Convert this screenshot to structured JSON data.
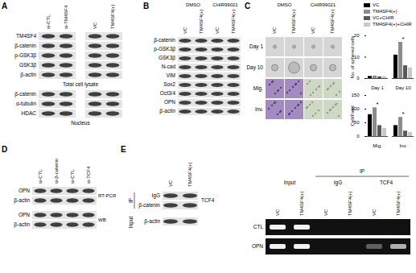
{
  "panels": {
    "A": {
      "label": "A",
      "columns": [
        "si-CTL",
        "si-TM4SF4",
        "VC",
        "TM4SF4(+)"
      ],
      "total_rows": [
        "TM4SF4",
        "β-catenin",
        "p-GSK3β",
        "GSK3β",
        "β-actin"
      ],
      "total_caption": "Total cell lysate",
      "nucleus_rows": [
        "β-catenin",
        "α-tubulin",
        "HDAC"
      ],
      "nucleus_caption": "Nucleus"
    },
    "B": {
      "label": "B",
      "groups": [
        "DMSO",
        "CHIR99021"
      ],
      "columns": [
        "VC",
        "TM4SF4(+)",
        "VC",
        "TM4SF4(+)"
      ],
      "rows": [
        "β-catenin",
        "p-GSK3β",
        "GSK3β",
        "N-cad",
        "VIM",
        "Sox2",
        "Oct3/4",
        "OPN",
        "β-actin"
      ]
    },
    "C": {
      "label": "C",
      "groups": [
        "DMSO",
        "CHIR99021"
      ],
      "columns": [
        "VC",
        "TM4SF4(+)",
        "VC",
        "TM4SF4(+)"
      ],
      "rows": [
        "Day 1",
        "Day 10",
        "Mig.",
        "Inv."
      ]
    },
    "D": {
      "label": "D",
      "columns": [
        "si-CTL",
        "si-β-catenin",
        "si-CTL",
        "si-TCF4"
      ],
      "blocks": [
        {
          "rows": [
            "OPN",
            "β-actin"
          ],
          "method": "RT-PCR"
        },
        {
          "rows": [
            "OPN",
            "β-actin"
          ],
          "method": "WB"
        }
      ]
    },
    "E": {
      "label": "E",
      "left": {
        "columns": [
          "VC",
          "TM4SF4(+)"
        ],
        "ip_label": "IP",
        "ip_rows": [
          "IgG",
          "β-catenin"
        ],
        "ip_antibody": "TCF4",
        "input_label": "Input",
        "input_rows": [
          "β-actin"
        ]
      },
      "right": {
        "ip_label": "IP",
        "groups": [
          "Input",
          "IgG",
          "TCF4"
        ],
        "columns": [
          "VC",
          "TM4SF4(+)"
        ],
        "rows": [
          "CTL",
          "OPN"
        ]
      }
    }
  },
  "chart_data": [
    {
      "type": "bar",
      "ylabel": "No. of sphered cells",
      "categories": [
        "Day 1",
        "Day 10"
      ],
      "series": [
        {
          "name": "VC",
          "color": "#000000",
          "values": [
            1,
            11
          ]
        },
        {
          "name": "TM4SF4(+)",
          "color": "#8c8c8c",
          "values": [
            1.2,
            17
          ]
        },
        {
          "name": "VC+CHIR",
          "color": "#5a5a5a",
          "values": [
            0.8,
            6
          ]
        },
        {
          "name": "TM4SF4(+)+CHIR",
          "color": "#c8c8c8",
          "values": [
            0.9,
            5
          ]
        }
      ],
      "ylim": [
        0,
        20
      ],
      "yticks": [
        0,
        10,
        20
      ],
      "legend": "top",
      "annotations": [
        {
          "category": "Day 10",
          "text": "*"
        }
      ]
    },
    {
      "type": "bar",
      "ylabel": "Cell/Field",
      "categories": [
        "Mig.",
        "Inv."
      ],
      "series": [
        {
          "name": "VC",
          "color": "#000000",
          "values": [
            80,
            40
          ]
        },
        {
          "name": "TM4SF4(+)",
          "color": "#8c8c8c",
          "values": [
            105,
            70
          ]
        },
        {
          "name": "VC+CHIR",
          "color": "#5a5a5a",
          "values": [
            40,
            20
          ]
        },
        {
          "name": "TM4SF4(+)+CHIR",
          "color": "#c8c8c8",
          "values": [
            30,
            15
          ]
        }
      ],
      "ylim": [
        0,
        150
      ],
      "yticks": [
        0,
        50,
        100,
        150
      ],
      "annotations": [
        {
          "category": "Mig.",
          "text": "*"
        },
        {
          "category": "Inv.",
          "text": "*"
        }
      ]
    }
  ]
}
